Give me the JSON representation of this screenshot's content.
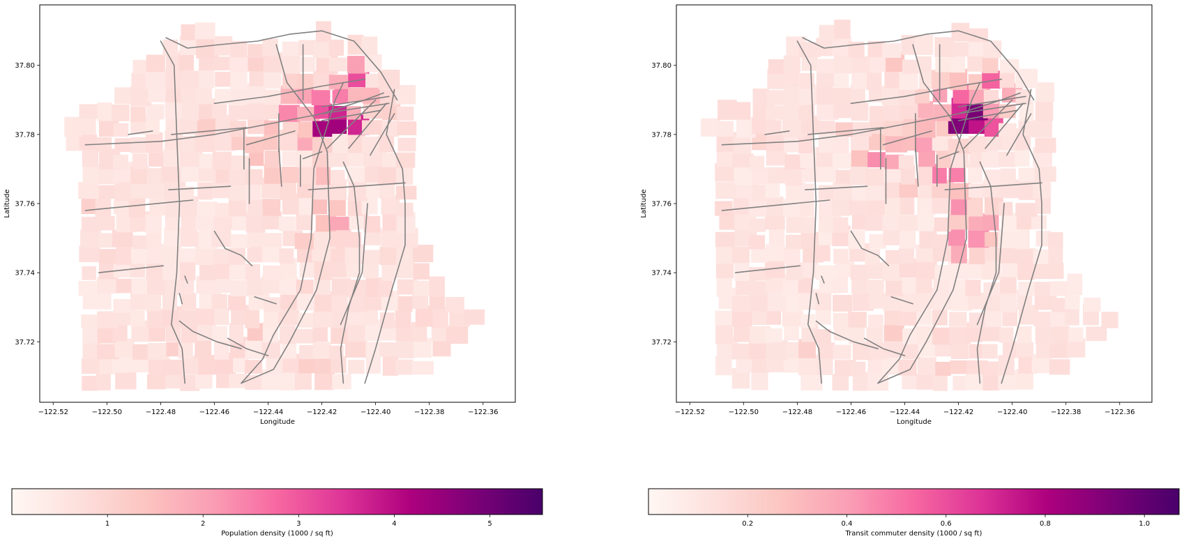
{
  "figure": {
    "panels": [
      {
        "xlabel": "Longitude",
        "ylabel": "Latitude",
        "xlim": [
          -122.525,
          -122.348
        ],
        "ylim": [
          37.7025,
          37.8175
        ],
        "xticks": [
          -122.52,
          -122.5,
          -122.48,
          -122.46,
          -122.44,
          -122.42,
          -122.4,
          -122.38,
          -122.36
        ],
        "xtick_labels": [
          "−122.52",
          "−122.50",
          "−122.48",
          "−122.46",
          "−122.44",
          "−122.42",
          "−122.40",
          "−122.38",
          "−122.36"
        ],
        "yticks": [
          37.72,
          37.74,
          37.76,
          37.78,
          37.8
        ],
        "ytick_labels": [
          "37.72",
          "37.74",
          "37.76",
          "37.78",
          "37.80"
        ],
        "colorbar": {
          "label": "Population density (1000 / sq ft)",
          "range": [
            0.0,
            5.55
          ],
          "ticks": [
            1,
            2,
            3,
            4,
            5
          ],
          "tick_labels": [
            "1",
            "2",
            "3",
            "4",
            "5"
          ]
        }
      },
      {
        "xlabel": "Longitude",
        "ylabel": "Latitude",
        "xlim": [
          -122.525,
          -122.348
        ],
        "ylim": [
          37.7025,
          37.8175
        ],
        "xticks": [
          -122.52,
          -122.5,
          -122.48,
          -122.46,
          -122.44,
          -122.42,
          -122.4,
          -122.38,
          -122.36
        ],
        "xtick_labels": [
          "−122.52",
          "−122.50",
          "−122.48",
          "−122.46",
          "−122.44",
          "−122.42",
          "−122.40",
          "−122.38",
          "−122.36"
        ],
        "yticks": [
          37.72,
          37.74,
          37.76,
          37.78,
          37.8
        ],
        "ytick_labels": [
          "37.72",
          "37.74",
          "37.76",
          "37.78",
          "37.80"
        ],
        "colorbar": {
          "label": "Transit commuter density (1000 / sq ft)",
          "range": [
            0.0,
            1.07
          ],
          "ticks": [
            0.2,
            0.4,
            0.6,
            0.8,
            1.0
          ],
          "tick_labels": [
            "0.2",
            "0.4",
            "0.6",
            "0.8",
            "1.0"
          ]
        }
      }
    ],
    "colormap": "RdPu",
    "colormap_stops": [
      "#fff7f3",
      "#fde0dd",
      "#fcc5c0",
      "#fa9fb5",
      "#f768a1",
      "#dd3497",
      "#ae017e",
      "#7a0177",
      "#49006a"
    ],
    "transit_line_color": "#808080",
    "coastline": [
      [
        -122.513,
        37.708
      ],
      [
        -122.507,
        37.73
      ],
      [
        -122.51,
        37.758
      ],
      [
        -122.514,
        37.782
      ],
      [
        -122.509,
        37.788
      ],
      [
        -122.497,
        37.79
      ],
      [
        -122.488,
        37.8
      ],
      [
        -122.478,
        37.808
      ],
      [
        -122.465,
        37.811
      ],
      [
        -122.447,
        37.807
      ],
      [
        -122.43,
        37.808
      ],
      [
        -122.418,
        37.81
      ],
      [
        -122.405,
        37.808
      ],
      [
        -122.392,
        37.797
      ],
      [
        -122.385,
        37.79
      ],
      [
        -122.387,
        37.78
      ],
      [
        -122.388,
        37.77
      ],
      [
        -122.384,
        37.76
      ],
      [
        -122.383,
        37.748
      ],
      [
        -122.378,
        37.74
      ],
      [
        -122.37,
        37.735
      ],
      [
        -122.36,
        37.728
      ],
      [
        -122.373,
        37.716
      ],
      [
        -122.387,
        37.708
      ]
    ],
    "transit_lines": [
      [
        [
          -122.48,
          37.807
        ],
        [
          -122.475,
          37.8
        ],
        [
          -122.474,
          37.78
        ],
        [
          -122.473,
          37.76
        ],
        [
          -122.474,
          37.74
        ],
        [
          -122.476,
          37.725
        ],
        [
          -122.472,
          37.718
        ],
        [
          -122.471,
          37.708
        ]
      ],
      [
        [
          -122.478,
          37.808
        ],
        [
          -122.47,
          37.805
        ],
        [
          -122.458,
          37.806
        ],
        [
          -122.444,
          37.807
        ],
        [
          -122.432,
          37.809
        ],
        [
          -122.42,
          37.81
        ],
        [
          -122.408,
          37.807
        ],
        [
          -122.398,
          37.798
        ],
        [
          -122.392,
          37.79
        ]
      ],
      [
        [
          -122.437,
          37.806
        ],
        [
          -122.433,
          37.795
        ],
        [
          -122.423,
          37.785
        ],
        [
          -122.418,
          37.775
        ],
        [
          -122.417,
          37.75
        ],
        [
          -122.422,
          37.735
        ],
        [
          -122.432,
          37.72
        ],
        [
          -122.438,
          37.712
        ],
        [
          -122.45,
          37.708
        ]
      ],
      [
        [
          -122.412,
          37.795
        ],
        [
          -122.415,
          37.79
        ],
        [
          -122.423,
          37.77
        ],
        [
          -122.424,
          37.75
        ],
        [
          -122.428,
          37.735
        ],
        [
          -122.438,
          37.722
        ],
        [
          -122.442,
          37.715
        ],
        [
          -122.45,
          37.708
        ]
      ],
      [
        [
          -122.393,
          37.793
        ],
        [
          -122.396,
          37.78
        ],
        [
          -122.39,
          37.77
        ],
        [
          -122.389,
          37.76
        ],
        [
          -122.389,
          37.748
        ],
        [
          -122.394,
          37.735
        ],
        [
          -122.4,
          37.718
        ],
        [
          -122.404,
          37.708
        ]
      ],
      [
        [
          -122.412,
          37.772
        ],
        [
          -122.408,
          37.765
        ],
        [
          -122.406,
          37.75
        ],
        [
          -122.406,
          37.74
        ],
        [
          -122.41,
          37.73
        ],
        [
          -122.413,
          37.718
        ],
        [
          -122.412,
          37.708
        ]
      ],
      [
        [
          -122.508,
          37.777
        ],
        [
          -122.48,
          37.778
        ],
        [
          -122.46,
          37.78
        ],
        [
          -122.44,
          37.783
        ],
        [
          -122.42,
          37.786
        ],
        [
          -122.404,
          37.79
        ],
        [
          -122.397,
          37.792
        ]
      ],
      [
        [
          -122.46,
          37.789
        ],
        [
          -122.44,
          37.791
        ],
        [
          -122.42,
          37.794
        ],
        [
          -122.404,
          37.796
        ]
      ],
      [
        [
          -122.492,
          37.78
        ],
        [
          -122.483,
          37.781
        ]
      ],
      [
        [
          -122.476,
          37.78
        ],
        [
          -122.448,
          37.782
        ]
      ],
      [
        [
          -122.448,
          37.777
        ],
        [
          -122.43,
          37.781
        ]
      ],
      [
        [
          -122.42,
          37.788
        ],
        [
          -122.395,
          37.791
        ]
      ],
      [
        [
          -122.42,
          37.786
        ],
        [
          -122.395,
          37.789
        ]
      ],
      [
        [
          -122.42,
          37.784
        ],
        [
          -122.398,
          37.787
        ]
      ],
      [
        [
          -122.418,
          37.776
        ],
        [
          -122.4,
          37.79
        ]
      ],
      [
        [
          -122.41,
          37.776
        ],
        [
          -122.396,
          37.789
        ]
      ],
      [
        [
          -122.402,
          37.774
        ],
        [
          -122.393,
          37.786
        ]
      ],
      [
        [
          -122.427,
          37.773
        ],
        [
          -122.42,
          37.775
        ]
      ],
      [
        [
          -122.477,
          37.764
        ],
        [
          -122.454,
          37.765
        ]
      ],
      [
        [
          -122.508,
          37.758
        ],
        [
          -122.468,
          37.761
        ]
      ],
      [
        [
          -122.503,
          37.74
        ],
        [
          -122.479,
          37.742
        ]
      ],
      [
        [
          -122.425,
          37.764
        ],
        [
          -122.389,
          37.766
        ]
      ],
      [
        [
          -122.447,
          37.773
        ],
        [
          -122.447,
          37.76
        ]
      ],
      [
        [
          -122.436,
          37.776
        ],
        [
          -122.435,
          37.765
        ]
      ],
      [
        [
          -122.428,
          37.774
        ],
        [
          -122.428,
          37.765
        ]
      ],
      [
        [
          -122.449,
          37.782
        ],
        [
          -122.449,
          37.77
        ]
      ],
      [
        [
          -122.427,
          37.806
        ],
        [
          -122.427,
          37.79
        ]
      ],
      [
        [
          -122.436,
          37.786
        ],
        [
          -122.436,
          37.775
        ]
      ],
      [
        [
          -122.46,
          37.752
        ],
        [
          -122.456,
          37.747
        ],
        [
          -122.45,
          37.745
        ],
        [
          -122.446,
          37.742
        ]
      ],
      [
        [
          -122.445,
          37.733
        ],
        [
          -122.437,
          37.731
        ]
      ],
      [
        [
          -122.471,
          37.739
        ],
        [
          -122.47,
          37.737
        ]
      ],
      [
        [
          -122.473,
          37.734
        ],
        [
          -122.472,
          37.731
        ]
      ],
      [
        [
          -122.473,
          37.726
        ],
        [
          -122.468,
          37.723
        ],
        [
          -122.459,
          37.72
        ],
        [
          -122.45,
          37.718
        ]
      ],
      [
        [
          -122.455,
          37.721
        ],
        [
          -122.448,
          37.718
        ],
        [
          -122.44,
          37.716
        ]
      ],
      [
        [
          -122.403,
          37.76
        ],
        [
          -122.405,
          37.74
        ],
        [
          -122.413,
          37.725
        ]
      ]
    ],
    "hotspots_population": [
      {
        "lon": -122.419,
        "lat": 37.782,
        "value": 5.2
      },
      {
        "lon": -122.416,
        "lat": 37.784,
        "value": 5.5
      },
      {
        "lon": -122.413,
        "lat": 37.786,
        "value": 4.5
      },
      {
        "lon": -122.417,
        "lat": 37.79,
        "value": 4.0
      },
      {
        "lon": -122.409,
        "lat": 37.783,
        "value": 4.4
      },
      {
        "lon": -122.421,
        "lat": 37.786,
        "value": 3.8
      },
      {
        "lon": -122.408,
        "lat": 37.797,
        "value": 3.2
      },
      {
        "lon": -122.412,
        "lat": 37.793,
        "value": 3.5
      },
      {
        "lon": -122.423,
        "lat": 37.791,
        "value": 3.0
      },
      {
        "lon": -122.429,
        "lat": 37.792,
        "value": 2.8
      },
      {
        "lon": -122.432,
        "lat": 37.786,
        "value": 2.4
      },
      {
        "lon": -122.437,
        "lat": 37.78,
        "value": 2.2
      },
      {
        "lon": -122.447,
        "lat": 37.779,
        "value": 2.0
      },
      {
        "lon": -122.427,
        "lat": 37.778,
        "value": 2.3
      },
      {
        "lon": -122.42,
        "lat": 37.77,
        "value": 2.0
      },
      {
        "lon": -122.418,
        "lat": 37.76,
        "value": 2.1
      },
      {
        "lon": -122.415,
        "lat": 37.754,
        "value": 2.3
      },
      {
        "lon": -122.43,
        "lat": 37.766,
        "value": 1.8
      },
      {
        "lon": -122.437,
        "lat": 37.77,
        "value": 1.8
      },
      {
        "lon": -122.445,
        "lat": 37.773,
        "value": 1.6
      },
      {
        "lon": -122.44,
        "lat": 37.76,
        "value": 1.5
      },
      {
        "lon": -122.425,
        "lat": 37.748,
        "value": 1.5
      },
      {
        "lon": -122.404,
        "lat": 37.79,
        "value": 2.3
      },
      {
        "lon": -122.398,
        "lat": 37.785,
        "value": 1.8
      },
      {
        "lon": -122.462,
        "lat": 37.783,
        "value": 1.4
      },
      {
        "lon": -122.478,
        "lat": 37.78,
        "value": 1.1
      },
      {
        "lon": -122.496,
        "lat": 37.778,
        "value": 1.0
      },
      {
        "lon": -122.458,
        "lat": 37.767,
        "value": 1.2
      },
      {
        "lon": -122.49,
        "lat": 37.76,
        "value": 1.0
      },
      {
        "lon": -122.505,
        "lat": 37.76,
        "value": 1.2
      },
      {
        "lon": -122.484,
        "lat": 37.742,
        "value": 0.9
      },
      {
        "lon": -122.5,
        "lat": 37.742,
        "value": 0.9
      },
      {
        "lon": -122.446,
        "lat": 37.723,
        "value": 1.5
      },
      {
        "lon": -122.43,
        "lat": 37.724,
        "value": 1.3
      },
      {
        "lon": -122.416,
        "lat": 37.72,
        "value": 1.2
      },
      {
        "lon": -122.405,
        "lat": 37.734,
        "value": 1.1
      },
      {
        "lon": -122.398,
        "lat": 37.745,
        "value": 0.9
      },
      {
        "lon": -122.423,
        "lat": 37.712,
        "value": 1.6
      },
      {
        "lon": -122.46,
        "lat": 37.713,
        "value": 1.2
      },
      {
        "lon": -122.475,
        "lat": 37.718,
        "value": 1.3
      },
      {
        "lon": -122.443,
        "lat": 37.8,
        "value": 1.3
      },
      {
        "lon": -122.458,
        "lat": 37.795,
        "value": 0.9
      },
      {
        "lon": -122.387,
        "lat": 37.722,
        "value": 0.6
      },
      {
        "lon": -122.395,
        "lat": 37.765,
        "value": 0.7
      }
    ],
    "hotspots_transit": [
      {
        "lon": -122.416,
        "lat": 37.784,
        "value": 1.07
      },
      {
        "lon": -122.413,
        "lat": 37.786,
        "value": 1.0
      },
      {
        "lon": -122.419,
        "lat": 37.782,
        "value": 0.95
      },
      {
        "lon": -122.41,
        "lat": 37.783,
        "value": 0.8
      },
      {
        "lon": -122.421,
        "lat": 37.787,
        "value": 0.75
      },
      {
        "lon": -122.423,
        "lat": 37.792,
        "value": 0.65
      },
      {
        "lon": -122.417,
        "lat": 37.791,
        "value": 0.6
      },
      {
        "lon": -122.408,
        "lat": 37.796,
        "value": 0.55
      },
      {
        "lon": -122.428,
        "lat": 37.79,
        "value": 0.55
      },
      {
        "lon": -122.43,
        "lat": 37.785,
        "value": 0.5
      },
      {
        "lon": -122.434,
        "lat": 37.779,
        "value": 0.55
      },
      {
        "lon": -122.442,
        "lat": 37.779,
        "value": 0.45
      },
      {
        "lon": -122.452,
        "lat": 37.774,
        "value": 0.6
      },
      {
        "lon": -122.446,
        "lat": 37.774,
        "value": 0.55
      },
      {
        "lon": -122.43,
        "lat": 37.772,
        "value": 0.5
      },
      {
        "lon": -122.424,
        "lat": 37.768,
        "value": 0.65
      },
      {
        "lon": -122.42,
        "lat": 37.76,
        "value": 0.55
      },
      {
        "lon": -122.416,
        "lat": 37.752,
        "value": 0.65
      },
      {
        "lon": -122.42,
        "lat": 37.748,
        "value": 0.6
      },
      {
        "lon": -122.412,
        "lat": 37.749,
        "value": 0.55
      },
      {
        "lon": -122.41,
        "lat": 37.756,
        "value": 0.45
      },
      {
        "lon": -122.402,
        "lat": 37.79,
        "value": 0.45
      },
      {
        "lon": -122.44,
        "lat": 37.762,
        "value": 0.3
      },
      {
        "lon": -122.462,
        "lat": 37.783,
        "value": 0.3
      },
      {
        "lon": -122.478,
        "lat": 37.78,
        "value": 0.22
      },
      {
        "lon": -122.495,
        "lat": 37.778,
        "value": 0.2
      },
      {
        "lon": -122.505,
        "lat": 37.76,
        "value": 0.25
      },
      {
        "lon": -122.484,
        "lat": 37.742,
        "value": 0.17
      },
      {
        "lon": -122.446,
        "lat": 37.723,
        "value": 0.28
      },
      {
        "lon": -122.428,
        "lat": 37.724,
        "value": 0.26
      },
      {
        "lon": -122.423,
        "lat": 37.712,
        "value": 0.3
      },
      {
        "lon": -122.475,
        "lat": 37.718,
        "value": 0.25
      },
      {
        "lon": -122.443,
        "lat": 37.8,
        "value": 0.28
      },
      {
        "lon": -122.398,
        "lat": 37.745,
        "value": 0.17
      },
      {
        "lon": -122.387,
        "lat": 37.722,
        "value": 0.1
      }
    ]
  }
}
